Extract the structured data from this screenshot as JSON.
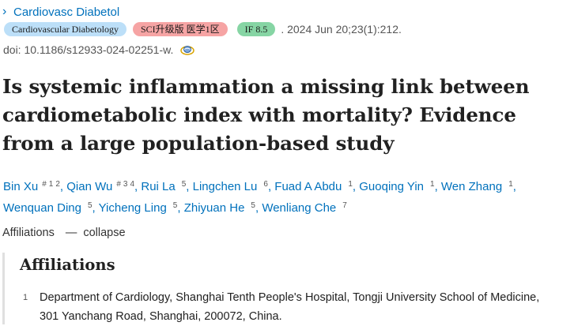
{
  "journal": {
    "name": "Cardiovasc Diabetol"
  },
  "badges": {
    "journal_full": "Cardiovascular Diabetology",
    "sci": "SCI升级版 医学1区",
    "impact": "IF 8.5"
  },
  "citation": ". 2024 Jun 20;23(1):212.",
  "doi": "doi: 10.1186/s12933-024-02251-w.",
  "title": "Is systemic inflammation a missing link between cardiometabolic index with mortality? Evidence from a large population-based study",
  "authors": [
    {
      "name": "Bin Xu",
      "equal": "#",
      "affils": [
        "1",
        "2"
      ]
    },
    {
      "name": "Qian Wu",
      "equal": "#",
      "affils": [
        "3",
        "4"
      ]
    },
    {
      "name": "Rui La",
      "equal": "",
      "affils": [
        "5"
      ]
    },
    {
      "name": "Lingchen Lu",
      "equal": "",
      "affils": [
        "6"
      ]
    },
    {
      "name": "Fuad A Abdu",
      "equal": "",
      "affils": [
        "1"
      ]
    },
    {
      "name": "Guoqing Yin",
      "equal": "",
      "affils": [
        "1"
      ]
    },
    {
      "name": "Wen Zhang",
      "equal": "",
      "affils": [
        "1"
      ]
    },
    {
      "name": "Wenquan Ding",
      "equal": "",
      "affils": [
        "5"
      ]
    },
    {
      "name": "Yicheng Ling",
      "equal": "",
      "affils": [
        "5"
      ]
    },
    {
      "name": "Zhiyuan He",
      "equal": "",
      "affils": [
        "5"
      ]
    },
    {
      "name": "Wenliang Che",
      "equal": "",
      "affils": [
        "7"
      ]
    }
  ],
  "affiliations_toggle": {
    "label": "Affiliations",
    "separator": "—",
    "action": "collapse"
  },
  "affiliations": {
    "heading": "Affiliations",
    "items": [
      {
        "num": "1",
        "text": "Department of Cardiology, Shanghai Tenth People's Hospital, Tongji University School of Medicine, 301 Yanchang Road, Shanghai, 200072, China."
      }
    ]
  },
  "icons": {
    "journal_chevron": "chevron-right-icon",
    "doi_link": "external-link-icon"
  },
  "colors": {
    "link": "#0071bc",
    "badge_blue": "#bcdff8",
    "badge_red": "#f6a4a4",
    "badge_green": "#86d5a4"
  }
}
